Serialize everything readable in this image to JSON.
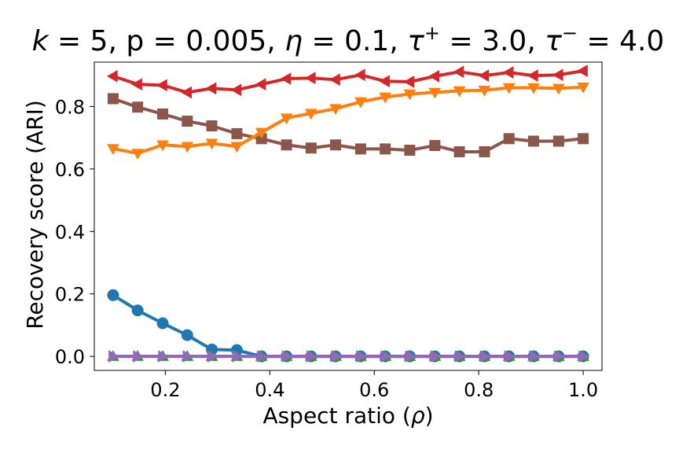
{
  "chart_data": {
    "type": "line",
    "title": "k = 5, p = 0.005, η = 0.1, τ⁺ = 3.0, τ⁻ = 4.0",
    "title_parts": {
      "k": "k",
      "eq1": " = 5, p = 0.005, ",
      "eta": "η",
      "eq2": " = 0.1, ",
      "tau1": "τ",
      "sup1": "+",
      "eq3": " = 3.0, ",
      "tau2": "τ",
      "sup2": "−",
      "eq4": " = 4.0"
    },
    "xlabel": "Aspect ratio (ρ)",
    "xlabel_parts": {
      "text": "Aspect ratio (",
      "rho": "ρ",
      "close": ")"
    },
    "ylabel": "Recovery score (ARI)",
    "xlim": [
      0.064,
      1.036
    ],
    "ylim": [
      -0.045,
      0.942
    ],
    "xticks": [
      0.2,
      0.4,
      0.6,
      0.8,
      1.0
    ],
    "xtick_labels": [
      "0.2",
      "0.4",
      "0.6",
      "0.8",
      "1.0"
    ],
    "yticks": [
      0.0,
      0.2,
      0.4,
      0.6,
      0.8
    ],
    "ytick_labels": [
      "0.0",
      "0.2",
      "0.4",
      "0.6",
      "0.8"
    ],
    "grid": false,
    "x": [
      0.1,
      0.147,
      0.195,
      0.242,
      0.289,
      0.337,
      0.384,
      0.432,
      0.479,
      0.526,
      0.574,
      0.621,
      0.668,
      0.716,
      0.763,
      0.811,
      0.858,
      0.905,
      0.953,
      1.0
    ],
    "series": [
      {
        "name": "blue-circle",
        "color": "#1f77b4",
        "marker": "circle",
        "values": [
          0.196,
          0.147,
          0.106,
          0.068,
          0.022,
          0.02,
          0.0,
          0.0,
          0.0,
          0.0,
          0.0,
          0.0,
          0.0,
          0.0,
          0.0,
          0.0,
          0.0,
          0.0,
          0.0,
          0.0
        ]
      },
      {
        "name": "green-triangle-up",
        "color": "#2ca02c",
        "marker": "triangle-up",
        "values": [
          0.0,
          0.0,
          0.0,
          0.0,
          0.0,
          0.0,
          0.0,
          0.0,
          0.0,
          0.0,
          0.0,
          0.0,
          0.0,
          0.0,
          0.0,
          0.0,
          0.0,
          0.0,
          0.0,
          0.0
        ]
      },
      {
        "name": "purple-triangle-right",
        "color": "#9467bd",
        "marker": "triangle-right",
        "values": [
          0.0,
          0.0,
          0.0,
          0.0,
          0.0,
          0.0,
          0.0,
          0.0,
          0.0,
          0.0,
          0.0,
          0.0,
          0.0,
          0.0,
          0.0,
          0.0,
          0.0,
          0.0,
          0.0,
          0.0
        ]
      },
      {
        "name": "brown-square",
        "color": "#8c564b",
        "marker": "square",
        "values": [
          0.825,
          0.798,
          0.776,
          0.753,
          0.738,
          0.713,
          0.697,
          0.677,
          0.667,
          0.677,
          0.664,
          0.664,
          0.66,
          0.675,
          0.655,
          0.655,
          0.697,
          0.689,
          0.689,
          0.697
        ]
      },
      {
        "name": "orange-triangle-down",
        "color": "#ff7f0e",
        "marker": "triangle-down",
        "values": [
          0.665,
          0.65,
          0.677,
          0.672,
          0.682,
          0.672,
          0.717,
          0.763,
          0.778,
          0.793,
          0.815,
          0.83,
          0.84,
          0.845,
          0.85,
          0.852,
          0.86,
          0.86,
          0.858,
          0.862
        ]
      },
      {
        "name": "red-triangle-left",
        "color": "#d62728",
        "marker": "triangle-left",
        "values": [
          0.897,
          0.871,
          0.868,
          0.845,
          0.858,
          0.853,
          0.871,
          0.889,
          0.891,
          0.886,
          0.901,
          0.881,
          0.879,
          0.897,
          0.911,
          0.899,
          0.909,
          0.899,
          0.901,
          0.914
        ]
      }
    ]
  }
}
